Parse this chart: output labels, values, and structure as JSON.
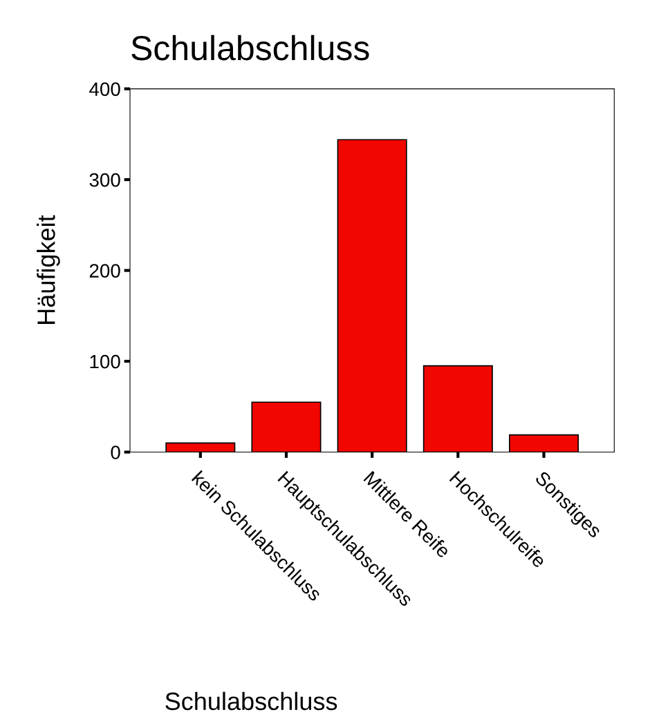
{
  "chart_data": {
    "type": "bar",
    "title": "Schulabschluss",
    "xlabel": "Schulabschluss",
    "ylabel": "Häufigkeit",
    "categories": [
      "kein Schulabschluss",
      "Hauptschulabschluss",
      "Mittlere Reife",
      "Hochschulreife",
      "Sonstiges"
    ],
    "values": [
      10,
      55,
      344,
      95,
      19
    ],
    "color": "#f20600",
    "ylim": [
      0,
      400
    ],
    "yticks": [
      0,
      100,
      200,
      300,
      400
    ],
    "grid": false
  }
}
